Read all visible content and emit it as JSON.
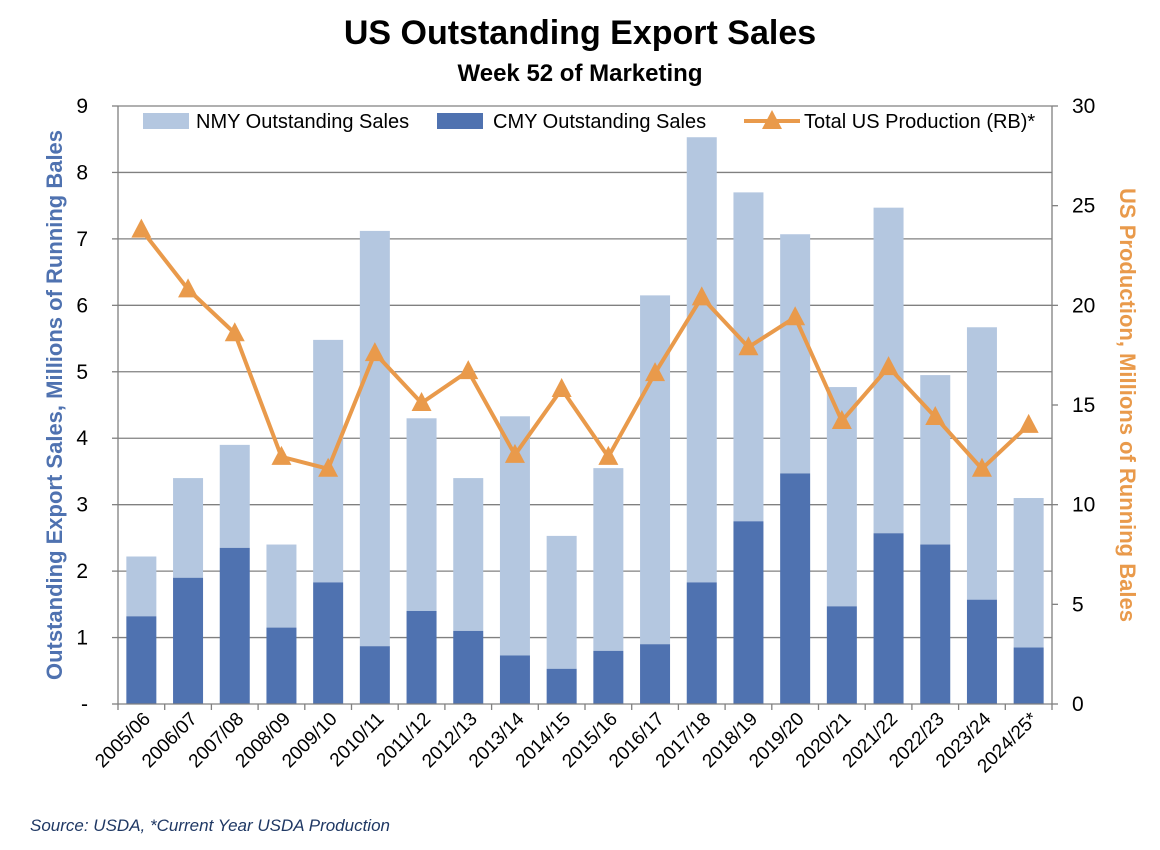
{
  "title": "US Outstanding Export Sales",
  "subtitle": "Week 52 of Marketing",
  "source": "Source: USDA, *Current Year USDA Production",
  "colors": {
    "nmy": "#b4c7e0",
    "cmy": "#4f72b0",
    "production": "#e99a4b",
    "left_axis_title": "#4f72b0",
    "right_axis_title": "#e99a4b",
    "grid": "#808080"
  },
  "chart_data": {
    "type": "bar",
    "stacked": true,
    "secondary_line": true,
    "categories": [
      "2005/06",
      "2006/07",
      "2007/08",
      "2008/09",
      "2009/10",
      "2010/11",
      "2011/12",
      "2012/13",
      "2013/14",
      "2014/15",
      "2015/16",
      "2016/17",
      "2017/18",
      "2018/19",
      "2019/20",
      "2020/21",
      "2021/22",
      "2022/23",
      "2023/24",
      "2024/25*"
    ],
    "series": [
      {
        "name": "NMY Outstanding Sales",
        "kind": "bar",
        "axis": "left",
        "values": [
          0.9,
          1.5,
          1.55,
          1.25,
          3.65,
          6.25,
          2.9,
          2.3,
          3.6,
          2.0,
          2.75,
          5.25,
          6.7,
          4.95,
          3.6,
          3.3,
          4.9,
          2.55,
          4.1,
          2.25
        ]
      },
      {
        "name": "CMY Outstanding Sales",
        "kind": "bar",
        "axis": "left",
        "values": [
          1.32,
          1.9,
          2.35,
          1.15,
          1.83,
          0.87,
          1.4,
          1.1,
          0.73,
          0.53,
          0.8,
          0.9,
          1.83,
          2.75,
          3.47,
          1.47,
          2.57,
          2.4,
          1.57,
          0.85
        ]
      },
      {
        "name": "Total US Production (RB)*",
        "kind": "line",
        "axis": "right",
        "marker": "triangle",
        "values": [
          23.8,
          20.8,
          18.6,
          12.4,
          11.8,
          17.6,
          15.1,
          16.7,
          12.5,
          15.8,
          12.4,
          16.6,
          20.4,
          17.9,
          19.4,
          14.2,
          16.9,
          14.4,
          11.8,
          14.0
        ]
      }
    ],
    "ylabel": "Outstanding Export Sales, Millions of Running Bales",
    "y2label": "US Production, Millions of Running Bales",
    "ylim": [
      0,
      9
    ],
    "y2lim": [
      0,
      30
    ],
    "yticks": [
      "-",
      "1",
      "2",
      "3",
      "4",
      "5",
      "6",
      "7",
      "8",
      "9"
    ],
    "y2ticks": [
      "0",
      "5",
      "10",
      "15",
      "20",
      "25",
      "30"
    ],
    "grid": true,
    "legend": "top"
  }
}
